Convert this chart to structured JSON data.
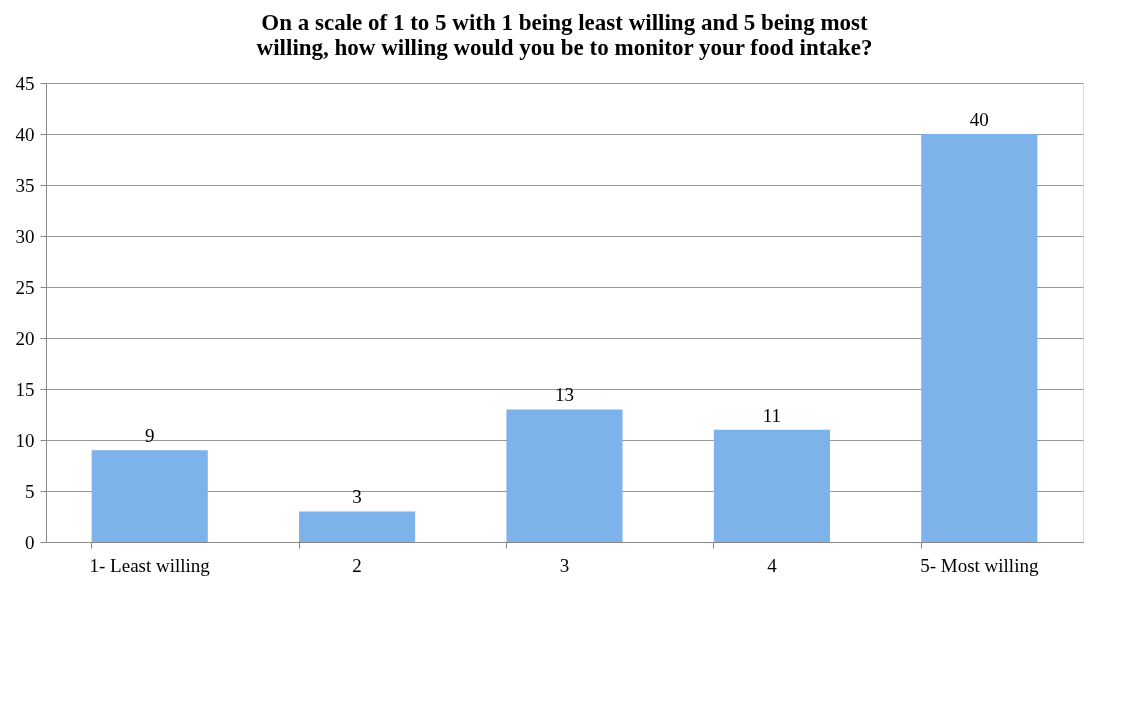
{
  "chart_data": {
    "type": "bar",
    "title": "On a scale of 1 to 5 with 1 being least willing and 5 being most willing, how willing would you be to monitor your food intake?",
    "categories": [
      "1- Least willing",
      "2",
      "3",
      "4",
      "5- Most willing"
    ],
    "values": [
      9,
      3,
      13,
      11,
      40
    ],
    "color": "#7db2ea",
    "ylim": [
      0,
      45
    ],
    "yticks": [
      0,
      5,
      10,
      15,
      20,
      25,
      30,
      35,
      40,
      45
    ],
    "grid": "y",
    "data_labels": true
  }
}
